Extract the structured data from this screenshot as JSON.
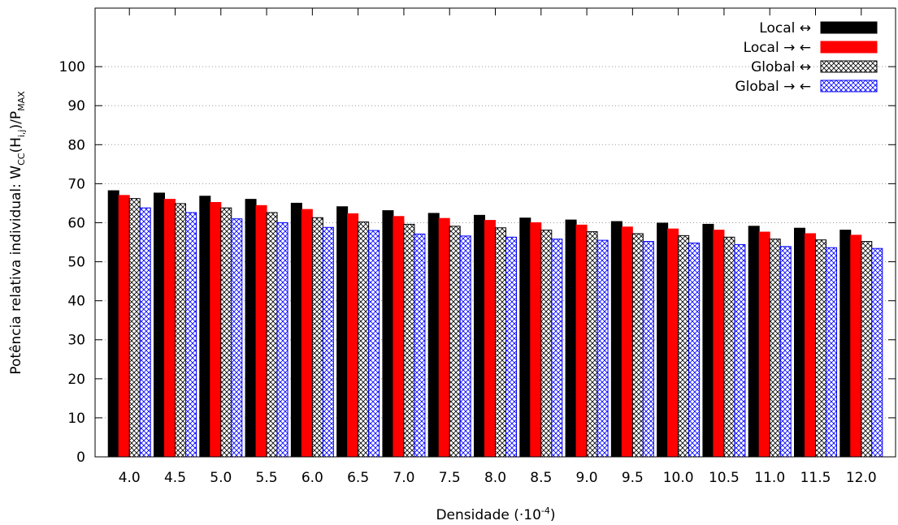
{
  "chart_data": {
    "type": "bar",
    "title": "",
    "xlabel": "Densidade (·10",
    "xlabel_sup": "-4",
    "xlabel_tail": ")",
    "ylabel": {
      "prefix": "Potência relativa individual: W",
      "sub1": "CC",
      "mid1": "(H",
      "sub2": "i,j",
      "mid2": ")/P",
      "sub3": "MAX"
    },
    "ylim": [
      0,
      115
    ],
    "yticks": [
      0,
      10,
      20,
      30,
      40,
      50,
      60,
      70,
      80,
      90,
      100
    ],
    "grid": "horizontal dotted",
    "legend_position": "top-right",
    "categories": [
      "4.0",
      "4.5",
      "5.0",
      "5.5",
      "6.0",
      "6.5",
      "7.0",
      "7.5",
      "8.0",
      "8.5",
      "9.0",
      "9.5",
      "10.0",
      "10.5",
      "11.0",
      "11.5",
      "12.0"
    ],
    "series": [
      {
        "name": "Local ↔",
        "color": "#000000",
        "fill": "solid",
        "values": [
          68.2,
          67.6,
          66.8,
          66.0,
          65.0,
          64.1,
          63.1,
          62.4,
          61.9,
          61.2,
          60.7,
          60.3,
          59.9,
          59.6,
          59.1,
          58.6,
          58.1
        ]
      },
      {
        "name": "Local → ←",
        "color": "#ff0000",
        "fill": "solid",
        "values": [
          67.0,
          66.0,
          65.2,
          64.4,
          63.4,
          62.3,
          61.6,
          61.1,
          60.6,
          60.0,
          59.4,
          58.9,
          58.4,
          58.1,
          57.6,
          57.2,
          56.8
        ]
      },
      {
        "name": "Global ↔",
        "color": "#000000",
        "fill": "crosshatch",
        "values": [
          66.2,
          64.9,
          63.8,
          62.6,
          61.3,
          60.2,
          59.6,
          59.1,
          58.7,
          58.1,
          57.7,
          57.2,
          56.7,
          56.3,
          55.8,
          55.6,
          55.2
        ]
      },
      {
        "name": "Global → ←",
        "color": "#0000ff",
        "fill": "crosshatch",
        "values": [
          63.8,
          62.6,
          61.0,
          60.0,
          58.8,
          58.0,
          57.1,
          56.6,
          56.3,
          55.8,
          55.5,
          55.2,
          54.8,
          54.4,
          53.9,
          53.6,
          53.4
        ]
      }
    ]
  }
}
